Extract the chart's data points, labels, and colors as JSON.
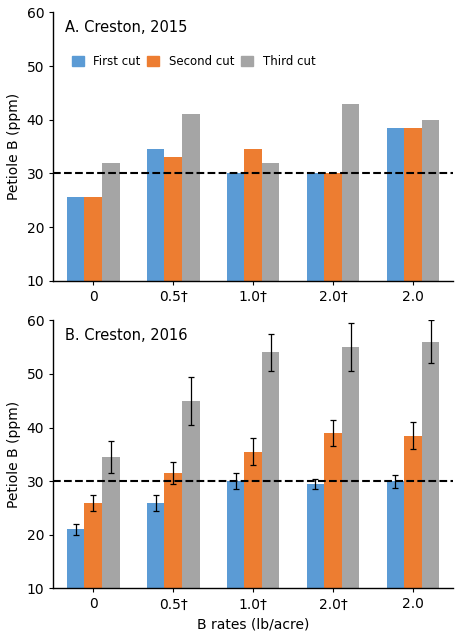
{
  "panel_A": {
    "title": "A. Creston, 2015",
    "categories": [
      "0",
      "0.5†",
      "1.0†",
      "2.0†",
      "2.0"
    ],
    "first_cut": [
      25.5,
      34.5,
      30.0,
      30.0,
      38.5
    ],
    "second_cut": [
      25.5,
      33.0,
      34.5,
      30.0,
      38.5
    ],
    "third_cut": [
      32.0,
      41.0,
      32.0,
      43.0,
      40.0
    ],
    "first_cut_err": [
      0,
      0,
      0,
      0,
      0
    ],
    "second_cut_err": [
      0,
      0,
      0,
      0,
      0
    ],
    "third_cut_err": [
      0,
      0,
      0,
      0,
      0
    ],
    "has_errorbars": false
  },
  "panel_B": {
    "title": "B. Creston, 2016",
    "categories": [
      "0",
      "0.5†",
      "1.0†",
      "2.0†",
      "2.0"
    ],
    "first_cut": [
      21.0,
      26.0,
      30.0,
      29.5,
      30.0
    ],
    "second_cut": [
      26.0,
      31.5,
      35.5,
      39.0,
      38.5
    ],
    "third_cut": [
      34.5,
      45.0,
      54.0,
      55.0,
      56.0
    ],
    "first_cut_err": [
      1.0,
      1.5,
      1.5,
      1.0,
      1.2
    ],
    "second_cut_err": [
      1.5,
      2.0,
      2.5,
      2.5,
      2.5
    ],
    "third_cut_err": [
      3.0,
      4.5,
      3.5,
      4.5,
      4.0
    ],
    "has_errorbars": true
  },
  "colors": {
    "first_cut": "#5B9BD5",
    "second_cut": "#ED7D31",
    "third_cut": "#A5A5A5"
  },
  "legend_labels": [
    "First cut",
    "Second cut",
    "Third cut"
  ],
  "ylabel": "Petiole B (ppm)",
  "xlabel": "B rates (lb/acre)",
  "dashed_line_y": 30,
  "ylim": [
    10,
    60
  ],
  "yticks": [
    10,
    20,
    30,
    40,
    50,
    60
  ],
  "bar_width": 0.22,
  "edgecolor": "none"
}
